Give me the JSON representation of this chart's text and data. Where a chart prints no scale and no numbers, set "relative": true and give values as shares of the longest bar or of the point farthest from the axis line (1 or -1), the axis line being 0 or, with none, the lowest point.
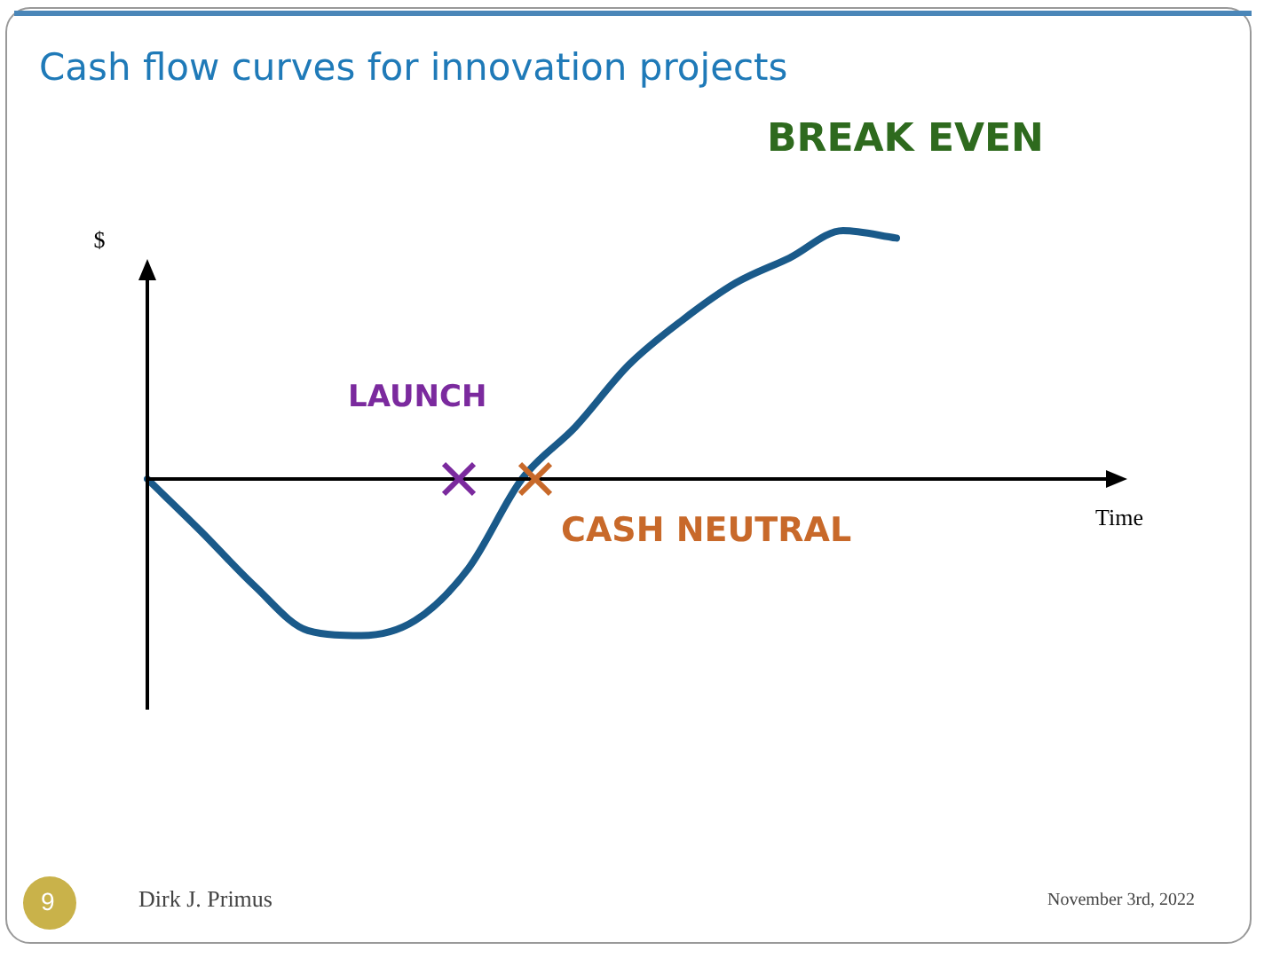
{
  "chart_data": {
    "type": "line",
    "title": "Cash flow curves for innovation projects",
    "ylabel": "$",
    "relative": true,
    "legend": false,
    "marker": "none",
    "categories": [
      null,
      null,
      null,
      null,
      null,
      null,
      null,
      null,
      null,
      null,
      null,
      null,
      null,
      null,
      null
    ],
    "series": [
      {
        "color": "#1a5a8a",
        "values": [
          0,
          -0.21,
          -0.43,
          -0.61,
          -0.63,
          -0.57,
          -0.36,
          0,
          0.21,
          0.46,
          0.64,
          0.79,
          0.89,
          1,
          0.97
        ]
      }
    ],
    "annotations": [
      "LAUNCH",
      "CASH NEUTRAL",
      "BREAK EVEN",
      "9",
      "Dirk J. Primus",
      "November 3rd, 2022",
      "Time"
    ]
  }
}
